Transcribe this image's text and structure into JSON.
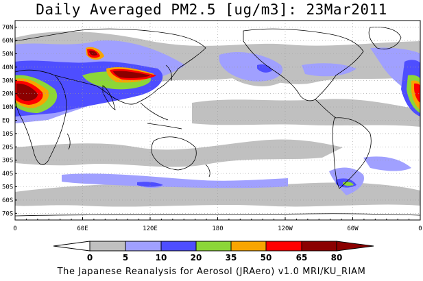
{
  "title": "Daily Averaged PM2.5 [ug/m3]: 23Mar2011",
  "footer": "The Japanese Reanalysis for Aerosol (JRAero) v1.0 MRI/KU_RIAM",
  "map": {
    "lat_labels": [
      "70N",
      "60N",
      "50N",
      "40N",
      "30N",
      "20N",
      "10N",
      "EQ",
      "10S",
      "20S",
      "30S",
      "40S",
      "50S",
      "60S",
      "70S"
    ],
    "lon_labels": [
      "0",
      "60E",
      "120E",
      "180",
      "120W",
      "60W",
      "0"
    ]
  },
  "colorbar": {
    "labels": [
      "0",
      "5",
      "10",
      "20",
      "35",
      "50",
      "65",
      "80"
    ],
    "colors": [
      "#ffffff",
      "#c0c0c0",
      "#a0a0ff",
      "#4e4eff",
      "#8cd638",
      "#f8a500",
      "#ff0000",
      "#8b0000"
    ]
  },
  "colors": {
    "land_outline": "#000000",
    "grid": "#999999"
  }
}
